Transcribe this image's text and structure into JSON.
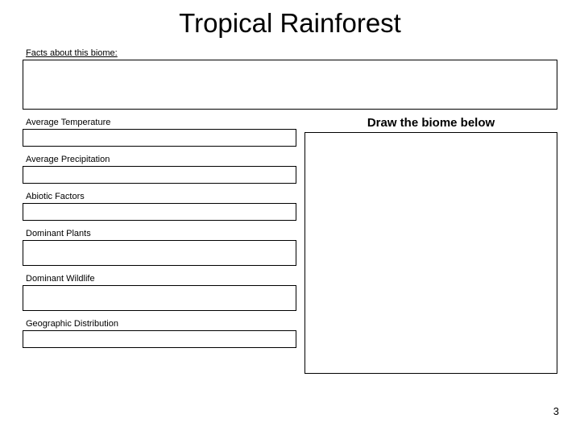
{
  "title": "Tropical Rainforest",
  "facts_label": "Facts about this biome:",
  "fields": {
    "avg_temp": "Average Temperature",
    "avg_precip": "Average Precipitation",
    "abiotic": "Abiotic Factors",
    "plants": "Dominant Plants",
    "wildlife": "Dominant Wildlife",
    "geo": "Geographic Distribution"
  },
  "draw_label": "Draw the biome below",
  "page_number": "3",
  "colors": {
    "border": "#000000",
    "background": "#ffffff",
    "text": "#000000"
  }
}
